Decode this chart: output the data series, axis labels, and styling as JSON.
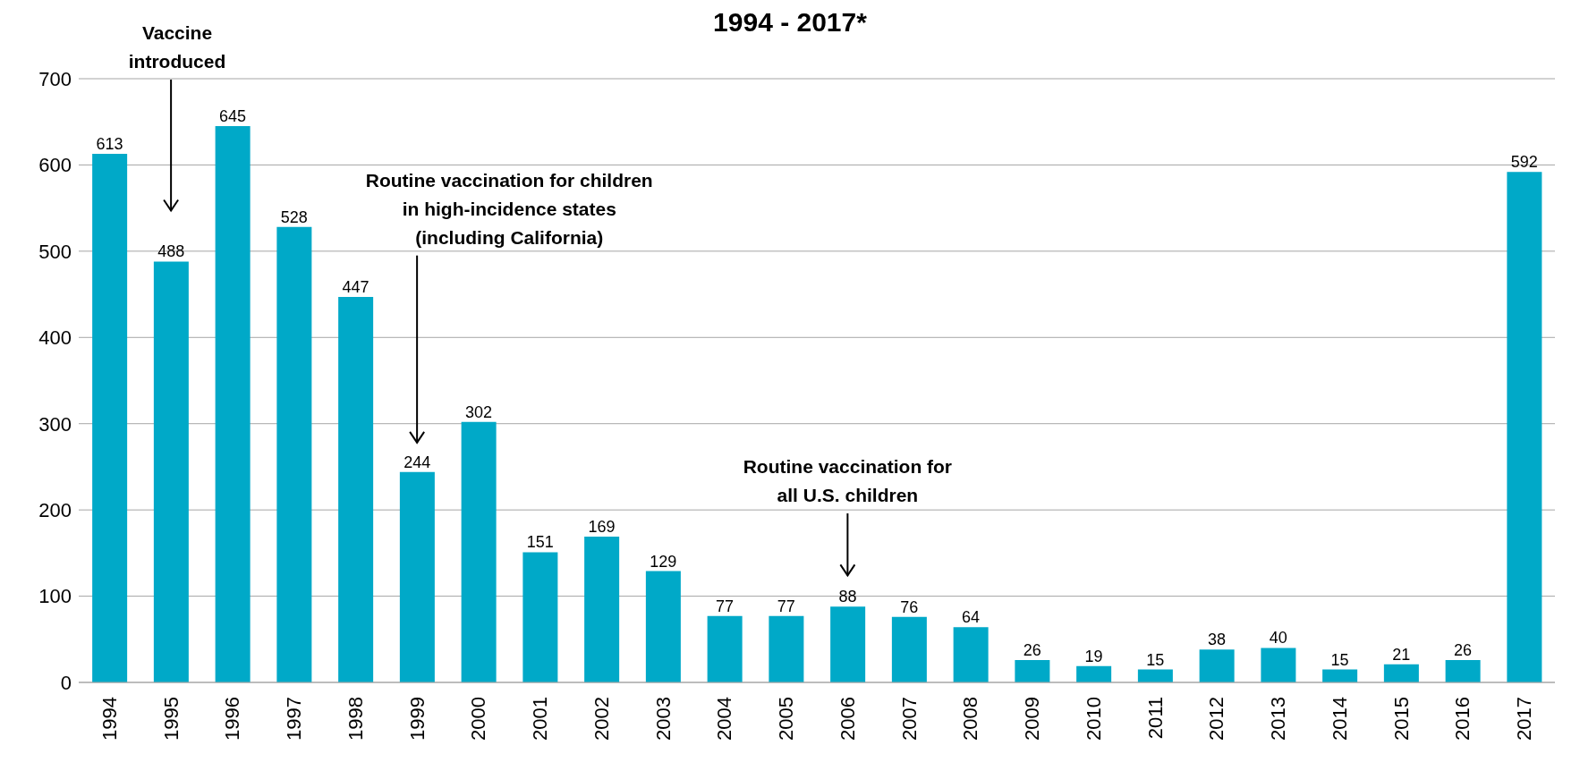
{
  "chart_data": {
    "type": "bar",
    "title": "1994  - 2017*",
    "categories": [
      "1994",
      "1995",
      "1996",
      "1997",
      "1998",
      "1999",
      "2000",
      "2001",
      "2002",
      "2003",
      "2004",
      "2005",
      "2006",
      "2007",
      "2008",
      "2009",
      "2010",
      "2011",
      "2012",
      "2013",
      "2014",
      "2015",
      "2016",
      "2017"
    ],
    "values": [
      613,
      488,
      645,
      528,
      447,
      244,
      302,
      151,
      169,
      129,
      77,
      77,
      88,
      76,
      64,
      26,
      19,
      15,
      38,
      40,
      15,
      21,
      26,
      592
    ],
    "color": "#00a9c8",
    "ylim": [
      0,
      700
    ],
    "yticks": [
      0,
      100,
      200,
      300,
      400,
      500,
      600,
      700
    ],
    "grid": "y",
    "data_labels": true,
    "annotations": [
      "Vaccine introduced",
      "Routine vaccination for children in high-incidence states (including California)",
      "Routine vaccination for all U.S. children"
    ]
  }
}
